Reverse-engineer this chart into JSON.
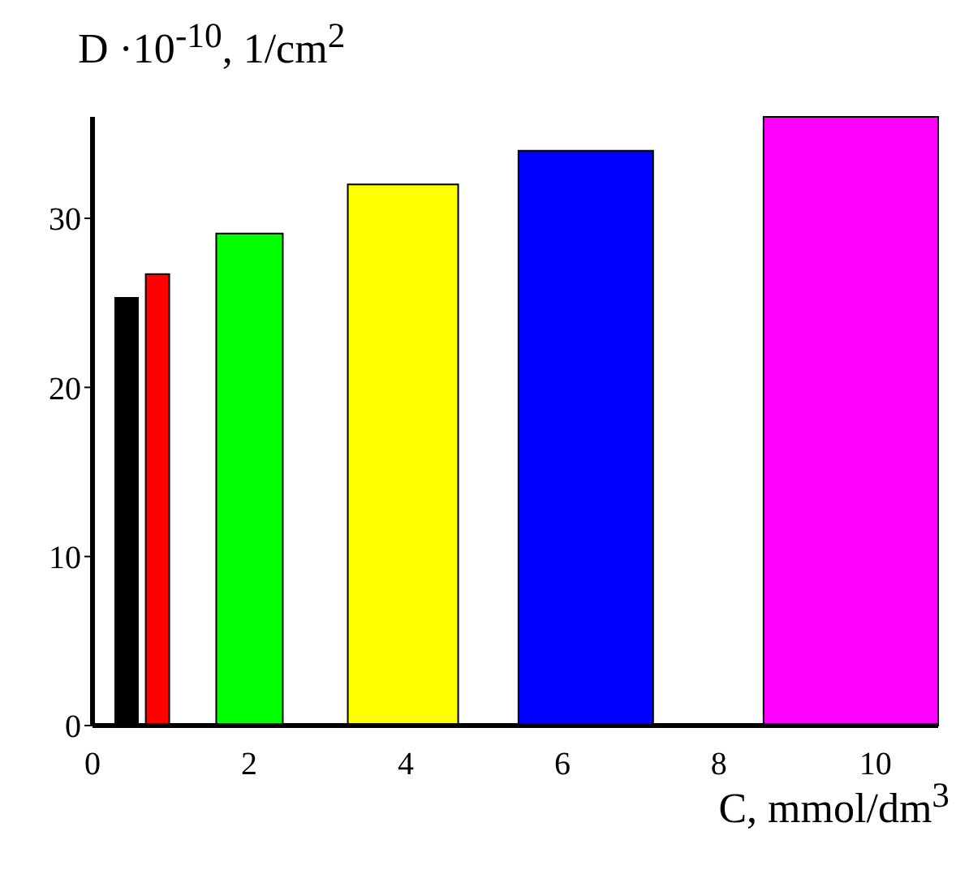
{
  "chart_data": {
    "type": "histogram",
    "xlabel": "C, mmol/dm$^{3}$",
    "ylabel": "D ·10$^{-10}$, 1/cm$^{2}$",
    "bins": [
      0.29,
      0.58,
      0.68,
      0.98,
      1.58,
      2.43,
      3.26,
      4.67,
      5.44,
      7.16,
      8.57,
      10.8
    ],
    "values": [
      25.3,
      null,
      26.7,
      null,
      29.1,
      null,
      32,
      null,
      34,
      null,
      36
    ],
    "colors": [
      "#000000",
      null,
      "#ff0000",
      null,
      "#00ff00",
      null,
      "#ffff00",
      null,
      "#0000ff",
      null,
      "#ff00ff"
    ],
    "xlim": [
      0,
      10.8
    ],
    "ylim": [
      0,
      36
    ],
    "xticks": [
      0,
      2,
      4,
      6,
      8,
      10
    ],
    "yticks": [
      0,
      10,
      20,
      30
    ],
    "grid": false
  }
}
